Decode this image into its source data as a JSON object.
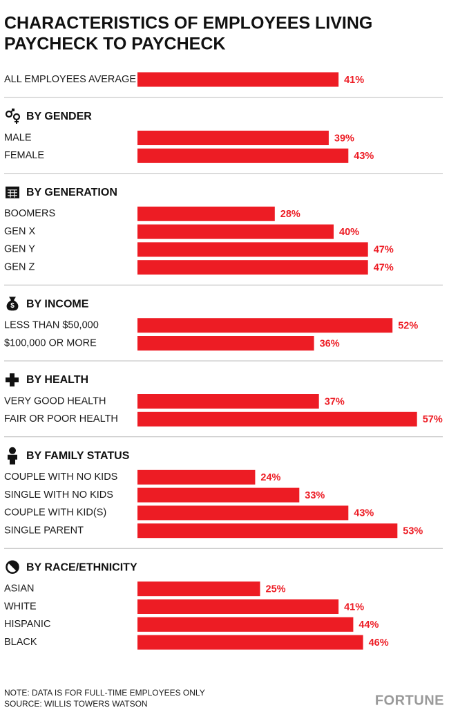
{
  "chart_data": {
    "type": "bar",
    "orientation": "horizontal",
    "title": [
      "CHARACTERISTICS OF EMPLOYEES LIVING",
      "PAYCHECK TO PAYCHECK"
    ],
    "color": "#ed1c24",
    "overall": {
      "category": "ALL EMPLOYEES AVERAGE",
      "value": 41,
      "value_label": "41%"
    },
    "groups": [
      {
        "title": "BY GENDER",
        "categories": [
          "MALE",
          "FEMALE"
        ],
        "values": [
          39,
          43
        ],
        "value_labels": [
          "39%",
          "43%"
        ]
      },
      {
        "title": "BY GENERATION",
        "categories": [
          "BOOMERS",
          "GEN X",
          "GEN Y",
          "GEN Z"
        ],
        "values": [
          28,
          40,
          47,
          47
        ],
        "value_labels": [
          "28%",
          "40%",
          "47%",
          "47%"
        ]
      },
      {
        "title": "BY INCOME",
        "categories": [
          "LESS THAN $50,000",
          "$100,000 OR MORE"
        ],
        "values": [
          52,
          36
        ],
        "value_labels": [
          "52%",
          "36%"
        ]
      },
      {
        "title": "BY HEALTH",
        "categories": [
          "VERY GOOD HEALTH",
          "FAIR OR POOR HEALTH"
        ],
        "values": [
          37,
          57
        ],
        "value_labels": [
          "37%",
          "57%"
        ]
      },
      {
        "title": "BY FAMILY STATUS",
        "categories": [
          "COUPLE WITH NO KIDS",
          "SINGLE WITH NO KIDS",
          "COUPLE WITH KID(S)",
          "SINGLE PARENT"
        ],
        "values": [
          24,
          33,
          43,
          53
        ],
        "value_labels": [
          "24%",
          "33%",
          "43%",
          "53%"
        ]
      },
      {
        "title": "BY RACE/ETHNICITY",
        "categories": [
          "ASIAN",
          "WHITE",
          "HISPANIC",
          "BLACK"
        ],
        "values": [
          25,
          41,
          44,
          46
        ],
        "value_labels": [
          "25%",
          "41%",
          "44%",
          "46%"
        ]
      }
    ],
    "note": "NOTE: DATA IS FOR FULL-TIME EMPLOYEES ONLY",
    "source": "SOURCE: WILLIS TOWERS WATSON",
    "brand": "FORTUNE"
  }
}
